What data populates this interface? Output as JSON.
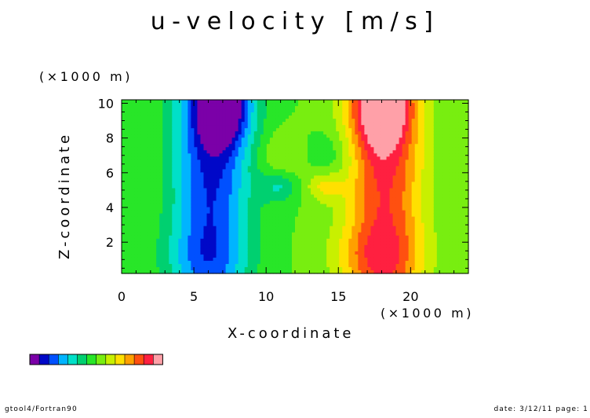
{
  "chart_data": {
    "type": "heatmap",
    "title": "u-velocity [m/s]",
    "xlabel": "X-coordinate",
    "xunit": "(×1000 m)",
    "ylabel": "Z-coordinate",
    "yunit": "(×1000 m)",
    "xlim": [
      0,
      24
    ],
    "ylim": [
      0.2,
      10.2
    ],
    "xticks": [
      0,
      5,
      10,
      15,
      20
    ],
    "yticks": [
      2,
      4,
      6,
      8,
      10
    ],
    "levels": 12,
    "palette": [
      "#7b00a8",
      "#0008c8",
      "#0050ff",
      "#00b4ff",
      "#00e0c8",
      "#00d070",
      "#28e628",
      "#78ee10",
      "#c8f000",
      "#ffe000",
      "#ffa000",
      "#ff5010",
      "#ff2040",
      "#ffa0a8"
    ],
    "vortices": [
      {
        "x": 7.0,
        "z": 9.7,
        "sign": -1
      },
      {
        "x": 18.0,
        "z": 9.7,
        "sign": 1
      },
      {
        "x": 10.9,
        "z": 5.2,
        "sign": -1
      },
      {
        "x": 14.0,
        "z": 5.2,
        "sign": 1
      }
    ]
  },
  "footer": {
    "left": "gtool4/Fortran90",
    "right": "date: 3/12/11 page: 1"
  }
}
